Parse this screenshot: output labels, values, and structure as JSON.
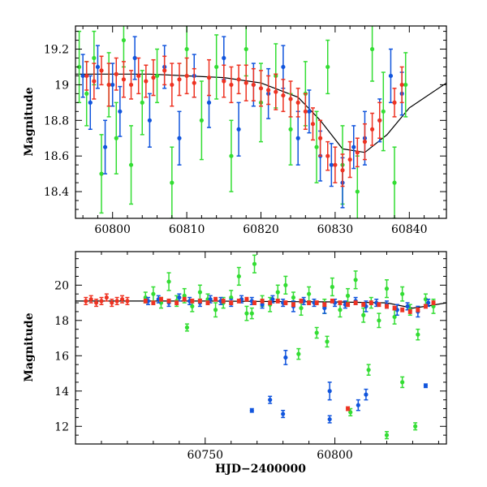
{
  "chart_data": [
    {
      "type": "scatter",
      "panel": "top",
      "xlabel": "",
      "ylabel": "Magnitude",
      "xlim": [
        60795,
        60845
      ],
      "ylim": [
        19.33,
        18.25
      ],
      "y_inverted": true,
      "xticks": [
        60800,
        60810,
        60820,
        60830,
        60840
      ],
      "xtick_labels": [
        "60800",
        "60810",
        "60820",
        "60830",
        "60840"
      ],
      "yticks": [
        18.4,
        18.6,
        18.8,
        19,
        19.2
      ],
      "ytick_labels": [
        "18.4",
        "18.6",
        "18.8",
        "19",
        "19.2"
      ],
      "grid": false,
      "model_curve": {
        "x": [
          60795,
          60805,
          60815,
          60820,
          60825,
          60828,
          60831,
          60834,
          60837,
          60840,
          60845
        ],
        "y": [
          19.06,
          19.06,
          19.04,
          19.01,
          18.93,
          18.8,
          18.64,
          18.62,
          18.72,
          18.87,
          19.01
        ]
      },
      "series": [
        {
          "color": "#33dd33",
          "x": [
            60795.5,
            60796.5,
            60797.5,
            60798.5,
            60799.5,
            60800.5,
            60801.5,
            60802.5,
            60804.0,
            60806.0,
            60808.0,
            60810.0,
            60812.0,
            60814.0,
            60816.0,
            60818.0,
            60820.0,
            60822.0,
            60824.0,
            60826.0,
            60827.5,
            60829.0,
            60831.0,
            60833.0,
            60835.0,
            60836.5,
            60838.0,
            60839.5
          ],
          "y": [
            19.1,
            18.95,
            19.15,
            18.5,
            19.0,
            18.7,
            19.25,
            18.55,
            18.9,
            19.05,
            18.45,
            19.2,
            18.8,
            19.1,
            18.6,
            19.2,
            18.9,
            19.05,
            18.75,
            18.95,
            18.65,
            19.1,
            18.55,
            18.4,
            19.2,
            18.85,
            18.45,
            19.0
          ],
          "err": [
            0.2,
            0.18,
            0.15,
            0.22,
            0.18,
            0.2,
            0.15,
            0.22,
            0.18,
            0.15,
            0.2,
            0.15,
            0.22,
            0.18,
            0.2,
            0.15,
            0.22,
            0.18,
            0.2,
            0.18,
            0.2,
            0.15,
            0.22,
            0.2,
            0.18,
            0.22,
            0.2,
            0.18
          ]
        },
        {
          "color": "#1155dd",
          "x": [
            60796.0,
            60797.0,
            60798.0,
            60799.0,
            60800.0,
            60801.0,
            60803.0,
            60805.0,
            60807.0,
            60809.0,
            60811.0,
            60813.0,
            60815.0,
            60817.0,
            60819.0,
            60821.0,
            60823.0,
            60825.0,
            60826.5,
            60828.0,
            60829.5,
            60831.0,
            60832.5,
            60834.0,
            60836.0,
            60837.5,
            60839.0
          ],
          "y": [
            19.05,
            18.9,
            19.1,
            18.65,
            19.0,
            18.85,
            19.15,
            18.8,
            19.1,
            18.7,
            19.05,
            18.9,
            19.15,
            18.75,
            19.0,
            18.95,
            19.1,
            18.7,
            18.85,
            18.6,
            18.55,
            18.45,
            18.65,
            18.7,
            18.8,
            19.05,
            18.95
          ],
          "err": [
            0.12,
            0.15,
            0.12,
            0.15,
            0.12,
            0.14,
            0.12,
            0.15,
            0.12,
            0.15,
            0.12,
            0.14,
            0.12,
            0.15,
            0.12,
            0.14,
            0.12,
            0.15,
            0.12,
            0.14,
            0.12,
            0.14,
            0.12,
            0.15,
            0.12,
            0.15,
            0.12
          ]
        },
        {
          "color": "#ee3322",
          "x": [
            60796.5,
            60797.5,
            60798.5,
            60799.5,
            60800.5,
            60801.5,
            60802.5,
            60803.5,
            60804.5,
            60805.5,
            60807.0,
            60808.0,
            60809.0,
            60810.0,
            60811.0,
            60813.0,
            60815.0,
            60816.0,
            60817.0,
            60818.0,
            60819.0,
            60820.0,
            60821.0,
            60822.0,
            60823.0,
            60824.0,
            60825.0,
            60826.0,
            60827.0,
            60828.0,
            60829.0,
            60830.0,
            60831.0,
            60832.0,
            60833.0,
            60834.0,
            60835.0,
            60836.0,
            60838.0,
            60839.0
          ],
          "y": [
            19.05,
            19.02,
            19.08,
            19.0,
            19.06,
            19.03,
            19.0,
            19.05,
            19.02,
            19.04,
            19.08,
            19.0,
            19.03,
            19.05,
            19.01,
            19.04,
            19.02,
            19.0,
            19.03,
            19.01,
            19.0,
            18.98,
            18.97,
            18.96,
            18.94,
            18.92,
            18.9,
            18.85,
            18.78,
            18.7,
            18.6,
            18.55,
            18.52,
            18.58,
            18.62,
            18.68,
            18.75,
            18.8,
            18.9,
            19.0
          ],
          "err": [
            0.08,
            0.1,
            0.08,
            0.12,
            0.09,
            0.1,
            0.08,
            0.1,
            0.09,
            0.1,
            0.08,
            0.12,
            0.09,
            0.1,
            0.08,
            0.1,
            0.09,
            0.1,
            0.08,
            0.1,
            0.09,
            0.1,
            0.08,
            0.1,
            0.09,
            0.1,
            0.08,
            0.1,
            0.09,
            0.1,
            0.08,
            0.1,
            0.09,
            0.1,
            0.08,
            0.1,
            0.09,
            0.1,
            0.08,
            0.1
          ]
        }
      ]
    },
    {
      "type": "scatter",
      "panel": "bottom",
      "xlabel": "HJD−2400000",
      "ylabel": "Magnitude",
      "xlim": [
        60700,
        60843
      ],
      "ylim": [
        21.9,
        11.0
      ],
      "y_inverted": true,
      "xticks": [
        60750,
        60800
      ],
      "xtick_labels": [
        "60750",
        "60800"
      ],
      "yticks": [
        12,
        14,
        16,
        18,
        20
      ],
      "ytick_labels": [
        "12",
        "14",
        "16",
        "18",
        "20"
      ],
      "grid": false,
      "model_curve": {
        "x": [
          60700,
          60750,
          60800,
          60820,
          60830,
          60835,
          60843
        ],
        "y": [
          19.1,
          19.1,
          19.05,
          19.0,
          18.7,
          18.8,
          19.0
        ]
      },
      "series": [
        {
          "color": "#33dd33",
          "x": [
            60727,
            60730,
            60733,
            60736,
            60739,
            60742,
            60745,
            60748,
            60751,
            60754,
            60757,
            60760,
            60763,
            60766,
            60769,
            60772,
            60775,
            60778,
            60781,
            60784,
            60787,
            60790,
            60793,
            60796,
            60799,
            60802,
            60805,
            60808,
            60811,
            60814,
            60817,
            60820,
            60823,
            60826,
            60829,
            60832,
            60835,
            60838,
            60743,
            60768,
            60786,
            60797,
            60806,
            60813,
            60820,
            60826,
            60831
          ],
          "y": [
            19.3,
            19.5,
            19.0,
            20.2,
            19.1,
            19.4,
            18.8,
            19.6,
            19.2,
            18.6,
            19.0,
            19.3,
            20.5,
            18.4,
            21.2,
            19.1,
            18.9,
            19.6,
            20.0,
            19.3,
            18.7,
            19.5,
            17.3,
            18.8,
            19.9,
            18.6,
            19.4,
            20.3,
            18.3,
            19.0,
            18.0,
            19.8,
            18.2,
            19.5,
            18.6,
            17.2,
            19.2,
            18.8,
            17.6,
            18.4,
            16.1,
            16.8,
            12.8,
            15.2,
            11.5,
            14.5,
            12.0
          ],
          "err": [
            0.3,
            0.4,
            0.3,
            0.5,
            0.3,
            0.4,
            0.3,
            0.4,
            0.3,
            0.4,
            0.3,
            0.4,
            0.5,
            0.4,
            0.5,
            0.3,
            0.4,
            0.4,
            0.5,
            0.3,
            0.4,
            0.4,
            0.3,
            0.4,
            0.5,
            0.4,
            0.4,
            0.5,
            0.4,
            0.3,
            0.4,
            0.5,
            0.4,
            0.4,
            0.3,
            0.3,
            0.3,
            0.4,
            0.2,
            0.3,
            0.3,
            0.3,
            0.2,
            0.3,
            0.2,
            0.3,
            0.2
          ]
        },
        {
          "color": "#1155dd",
          "x": [
            60728,
            60732,
            60736,
            60740,
            60744,
            60748,
            60752,
            60756,
            60760,
            60764,
            60768,
            60772,
            60776,
            60780,
            60784,
            60788,
            60792,
            60796,
            60800,
            60804,
            60808,
            60812,
            60816,
            60820,
            60824,
            60828,
            60832,
            60836,
            60768,
            60775,
            60780,
            60781,
            60798,
            60798,
            60809,
            60812,
            60835
          ],
          "y": [
            19.1,
            19.2,
            19.0,
            19.3,
            19.1,
            19.0,
            19.2,
            19.1,
            19.0,
            19.2,
            19.1,
            18.9,
            19.2,
            19.0,
            18.8,
            19.1,
            19.0,
            18.7,
            19.0,
            18.9,
            19.1,
            18.8,
            19.0,
            18.9,
            18.6,
            18.8,
            18.5,
            19.0,
            12.9,
            13.5,
            12.7,
            15.9,
            12.4,
            14.0,
            13.2,
            13.8,
            14.3
          ],
          "err": [
            0.2,
            0.2,
            0.2,
            0.2,
            0.2,
            0.2,
            0.2,
            0.2,
            0.2,
            0.2,
            0.2,
            0.2,
            0.2,
            0.2,
            0.3,
            0.2,
            0.2,
            0.3,
            0.2,
            0.2,
            0.2,
            0.3,
            0.2,
            0.2,
            0.3,
            0.2,
            0.3,
            0.2,
            0.1,
            0.2,
            0.2,
            0.4,
            0.2,
            0.5,
            0.3,
            0.3,
            0.1
          ]
        },
        {
          "color": "#ee3322",
          "x": [
            60704,
            60706,
            60708,
            60710,
            60712,
            60714,
            60716,
            60718,
            60720,
            60727,
            60730,
            60733,
            60736,
            60739,
            60742,
            60745,
            60748,
            60751,
            60754,
            60757,
            60760,
            60763,
            60766,
            60769,
            60772,
            60775,
            60778,
            60781,
            60784,
            60787,
            60790,
            60793,
            60796,
            60799,
            60802,
            60805,
            60808,
            60811,
            60814,
            60817,
            60820,
            60823,
            60826,
            60829,
            60832,
            60835,
            60838,
            60805
          ],
          "y": [
            19.1,
            19.2,
            19.0,
            19.1,
            19.3,
            19.0,
            19.1,
            19.2,
            19.1,
            19.1,
            19.0,
            19.2,
            19.1,
            19.0,
            19.2,
            19.1,
            19.1,
            19.0,
            19.2,
            19.1,
            19.0,
            19.1,
            19.2,
            19.0,
            19.1,
            19.0,
            19.1,
            19.0,
            18.9,
            19.1,
            19.0,
            19.0,
            18.9,
            19.1,
            19.0,
            18.9,
            19.0,
            18.9,
            19.0,
            18.9,
            18.8,
            18.7,
            18.6,
            18.5,
            18.6,
            18.8,
            19.0,
            13.0
          ],
          "err": [
            0.2,
            0.2,
            0.2,
            0.2,
            0.2,
            0.2,
            0.2,
            0.2,
            0.2,
            0.1,
            0.1,
            0.1,
            0.1,
            0.1,
            0.1,
            0.1,
            0.1,
            0.1,
            0.1,
            0.1,
            0.1,
            0.1,
            0.1,
            0.1,
            0.1,
            0.1,
            0.1,
            0.1,
            0.1,
            0.1,
            0.1,
            0.1,
            0.1,
            0.1,
            0.1,
            0.1,
            0.1,
            0.1,
            0.1,
            0.1,
            0.1,
            0.1,
            0.1,
            0.1,
            0.1,
            0.1,
            0.1,
            0.1
          ]
        }
      ]
    }
  ]
}
